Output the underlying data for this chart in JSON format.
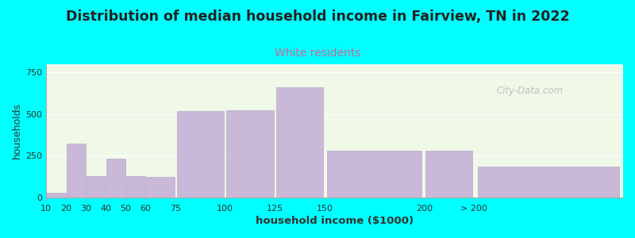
{
  "title": "Distribution of median household income in Fairview, TN in 2022",
  "subtitle": "White residents",
  "xlabel": "household income ($1000)",
  "ylabel": "households",
  "background_color": "#00FFFF",
  "bar_color": "#c9b8d8",
  "bar_edge_color": "#b8a8cc",
  "title_fontsize": 12.5,
  "title_fontweight": "bold",
  "subtitle_fontsize": 10,
  "subtitle_color": "#cc6699",
  "xlabel_fontsize": 9.5,
  "ylabel_fontsize": 9,
  "tick_fontsize": 8,
  "bar_left_edges": [
    10,
    20,
    30,
    40,
    50,
    60,
    75,
    100,
    125,
    150,
    200,
    225
  ],
  "bar_widths": [
    10,
    10,
    10,
    10,
    10,
    15,
    25,
    25,
    25,
    50,
    25,
    75
  ],
  "values": [
    30,
    325,
    130,
    235,
    130,
    125,
    520,
    525,
    660,
    280,
    280,
    185
  ],
  "xtick_positions": [
    10,
    20,
    30,
    40,
    50,
    60,
    75,
    100,
    125,
    150,
    200,
    225
  ],
  "xtick_labels": [
    "10",
    "20",
    "30",
    "40",
    "50",
    "60",
    "75",
    "100",
    "125",
    "150",
    "200",
    "> 200"
  ],
  "xlim": [
    10,
    300
  ],
  "ylim": [
    0,
    800
  ],
  "yticks": [
    0,
    250,
    500,
    750
  ],
  "watermark": "City-Data.com"
}
